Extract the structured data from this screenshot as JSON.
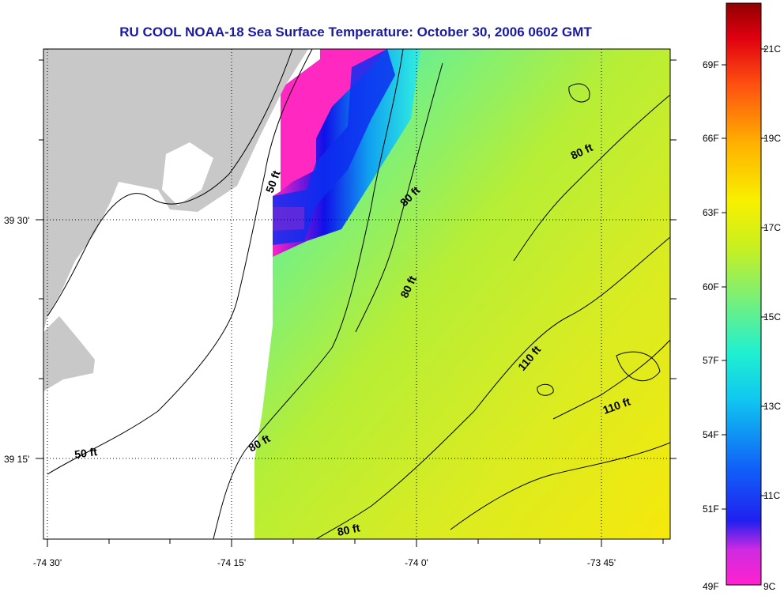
{
  "title": "RU COOL  NOAA-18  Sea Surface Temperature:  October 30, 2006 0602 GMT",
  "x_ticks": [
    "-74 30'",
    "-74 15'",
    "-74 0'",
    "-73 45'"
  ],
  "y_ticks": [
    "39 30'",
    "39 15'"
  ],
  "contour_labels": [
    "50 ft",
    "80 ft",
    "80 ft",
    "80 ft",
    "80 ft",
    "110 ft",
    "110 ft",
    "50 ft",
    "80 ft"
  ],
  "colorbar": {
    "fahrenheit": [
      "69F",
      "66F",
      "63F",
      "60F",
      "57F",
      "54F",
      "51F",
      "49F"
    ],
    "celsius": [
      "21C",
      "19C",
      "17C",
      "15C",
      "13C",
      "11C",
      "9C"
    ]
  },
  "colors": {
    "land": "#c8c8c8",
    "no_data": "#ffffff",
    "warm": "#f2ea10",
    "mid": "#b6ee36",
    "cool": "#18e6ea",
    "cold": "#0a1ef0",
    "coldest": "#ff22c6",
    "title": "#1a1aa0"
  }
}
